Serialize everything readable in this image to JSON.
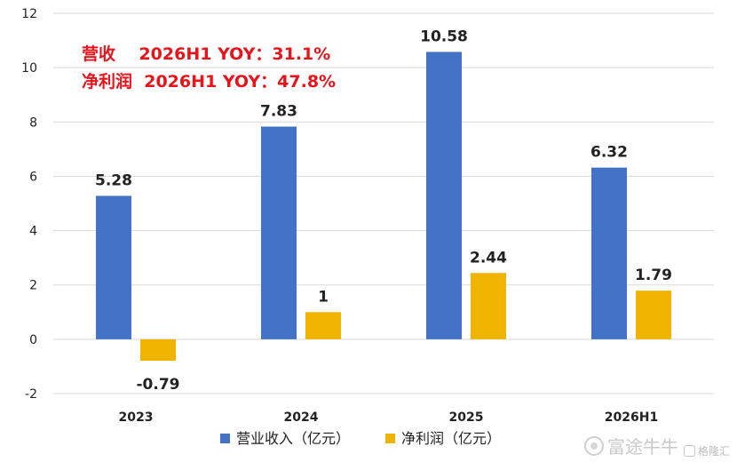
{
  "chart_data": {
    "type": "bar",
    "categories": [
      "2023",
      "2024",
      "2025",
      "2026H1"
    ],
    "series": [
      {
        "name": "营业收入（亿元）",
        "values": [
          5.28,
          7.83,
          10.58,
          6.32
        ],
        "color": "#4472c4"
      },
      {
        "name": "净利润（亿元）",
        "values": [
          -0.79,
          1,
          2.44,
          1.79
        ],
        "color": "#f0b400"
      }
    ],
    "data_labels": [
      [
        "5.28",
        "7.83",
        "10.58",
        "6.32"
      ],
      [
        "-0.79",
        "1",
        "2.44",
        "1.79"
      ]
    ],
    "yticks": [
      "12",
      "10",
      "8",
      "6",
      "4",
      "2",
      "0",
      "-2"
    ],
    "ylim": [
      -2,
      12
    ],
    "grid": true,
    "legend_position": "bottom",
    "annotations": [
      "营收    2026H1 YOY：31.1%",
      "净利润  2026H1 YOY：47.8%"
    ],
    "annotation_color": "#e8141b"
  },
  "watermark": {
    "brand": "富途牛牛",
    "source": "格隆汇"
  }
}
